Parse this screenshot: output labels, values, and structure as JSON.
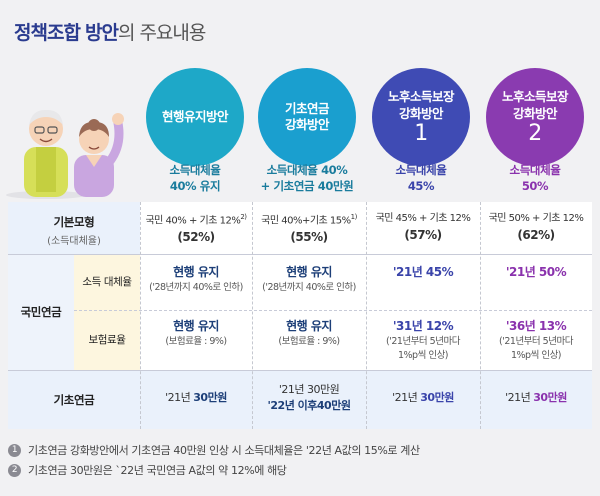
{
  "title": {
    "bold1": "정책조합",
    "bold2": "방안",
    "rest": "의 주요내용"
  },
  "columns": [
    {
      "header": "현행유지방안",
      "header2": "",
      "number": "",
      "rate1": "소득대체율",
      "rate2": "40% 유지"
    },
    {
      "header": "기초연금",
      "header2": "강화방안",
      "number": "",
      "rate1": "소득대체율 40%",
      "rate2": "+ 기초연금 40만원"
    },
    {
      "header": "노후소득보장",
      "header2": "강화방안",
      "number": "1",
      "rate1": "소득대체율",
      "rate2": "45%"
    },
    {
      "header": "노후소득보장",
      "header2": "강화방안",
      "number": "2",
      "rate1": "소득대체율",
      "rate2": "50%"
    }
  ],
  "rows": {
    "basic_model": {
      "label": "기본모형",
      "sublabel": "(소득대체율)"
    },
    "national_pension": {
      "label": "국민연금"
    },
    "income_rate": {
      "label": "소득 대체율"
    },
    "premium_rate": {
      "label": "보험료율"
    },
    "basic_pension": {
      "label": "기초연금"
    }
  },
  "cells": {
    "basic_model": [
      {
        "line1": "국민 40% + 기초 12%",
        "sup": "2)",
        "line2": "(52%)"
      },
      {
        "line1": "국민 40%+기초 15%",
        "sup": "1)",
        "line2": "(55%)"
      },
      {
        "line1": "국민 45% + 기초 12%",
        "sup": "",
        "line2": "(57%)"
      },
      {
        "line1": "국민 50% + 기초 12%",
        "sup": "",
        "line2": "(62%)"
      }
    ],
    "income_rate": [
      {
        "main": "현행 유지",
        "sub": "('28년까지 40%로 인하)"
      },
      {
        "main": "현행 유지",
        "sub": "('28년까지 40%로 인하)"
      },
      {
        "main": "'21년 45%",
        "sub": ""
      },
      {
        "main": "'21년 50%",
        "sub": ""
      }
    ],
    "premium_rate": [
      {
        "main": "현행 유지",
        "sub": "(보험료율 : 9%)",
        "sub2": ""
      },
      {
        "main": "현행 유지",
        "sub": "(보험료율 : 9%)",
        "sub2": ""
      },
      {
        "main": "'31년 12%",
        "sub": "('21년부터 5년마다",
        "sub2": "1%p씩 인상)"
      },
      {
        "main": "'36년 13%",
        "sub": "('21년부터 5년마다",
        "sub2": "1%p씩 인상)"
      }
    ],
    "basic_pension": [
      {
        "pre": "'21년 ",
        "amount": "30만원",
        "line2": ""
      },
      {
        "pre": "'21년 30만원",
        "amount": "",
        "line2": "'22년 이후40만원"
      },
      {
        "pre": "'21년 ",
        "amount": "30만원",
        "line2": ""
      },
      {
        "pre": "'21년 ",
        "amount": "30만원",
        "line2": ""
      }
    ]
  },
  "notes": [
    {
      "num": "1",
      "text": "기초연금 강화방안에서 기초연금 40만원 인상 시 소득대체율은 '22년 A값의 15%로 계산"
    },
    {
      "num": "2",
      "text": "기초연금 30만원은 `22년 국민연금 A값의 약 12%에 해당"
    }
  ],
  "colors": {
    "teal": "#1ea8c8",
    "blue": "#1a9fcf",
    "indigo": "#3f4bb4",
    "purple": "#8a3bb0"
  }
}
